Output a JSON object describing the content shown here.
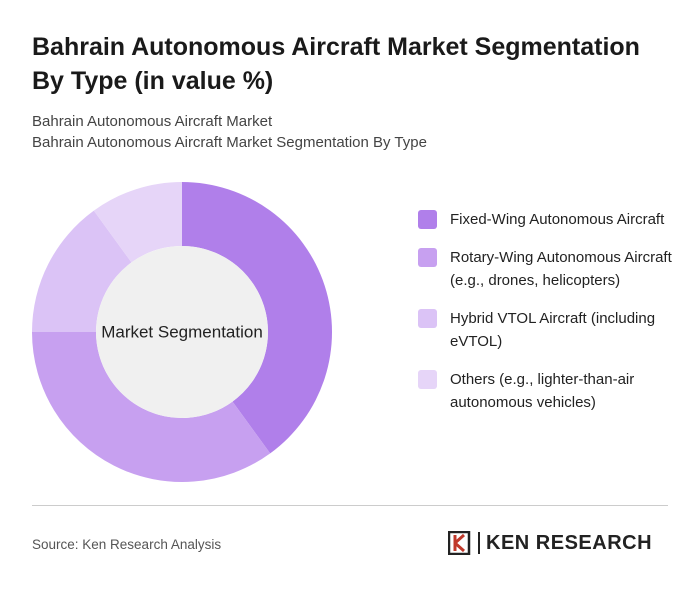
{
  "chart_data": {
    "type": "donut",
    "title": "Bahrain Autonomous Aircraft Market Segmentation By Type (in value %)",
    "subtitle": [
      "Bahrain Autonomous Aircraft Market",
      "Bahrain Autonomous Aircraft Market Segmentation By Type"
    ],
    "center_label": "Market Segmentation",
    "categories": [
      "Fixed-Wing Autonomous Aircraft",
      "Rotary-Wing Autonomous Aircraft (e.g., drones, helicopters)",
      "Hybrid VTOL Aircraft (including eVTOL)",
      "Others (e.g., lighter-than-air autonomous vehicles)"
    ],
    "values": [
      40,
      35,
      15,
      10
    ],
    "colors": [
      "#b07fea",
      "#c7a0f0",
      "#dbc3f6",
      "#e6d5f8"
    ],
    "source": "Source: Ken Research Analysis",
    "logo": "KEN RESEARCH"
  }
}
